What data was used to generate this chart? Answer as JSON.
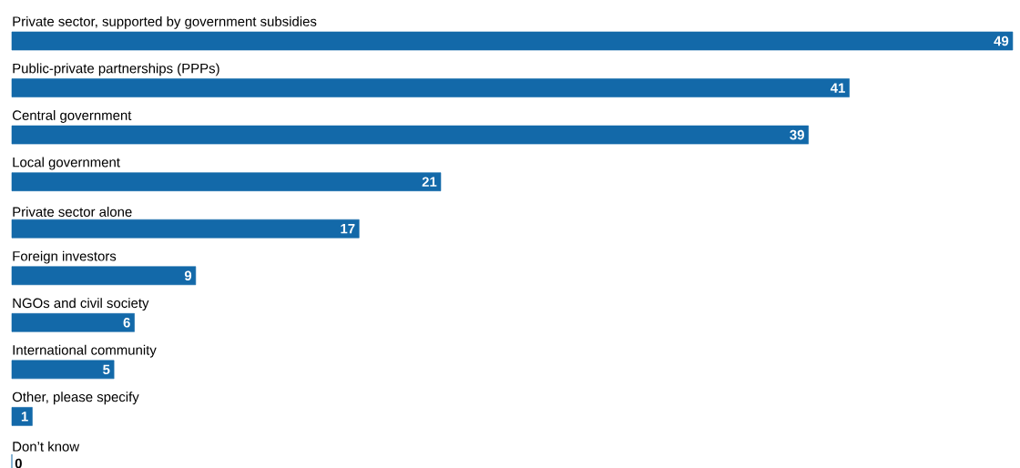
{
  "chart_data": {
    "type": "bar",
    "orientation": "horizontal",
    "categories": [
      "Private sector, supported by government subsidies",
      "Public-private partnerships (PPPs)",
      "Central government",
      "Local government",
      "Private sector alone",
      "Foreign investors",
      "NGOs and civil society",
      "International community",
      "Other, please specify",
      "Don’t know"
    ],
    "values": [
      49,
      41,
      39,
      21,
      17,
      9,
      6,
      5,
      1,
      0
    ],
    "color": "#1369a9",
    "data_labels": true
  }
}
